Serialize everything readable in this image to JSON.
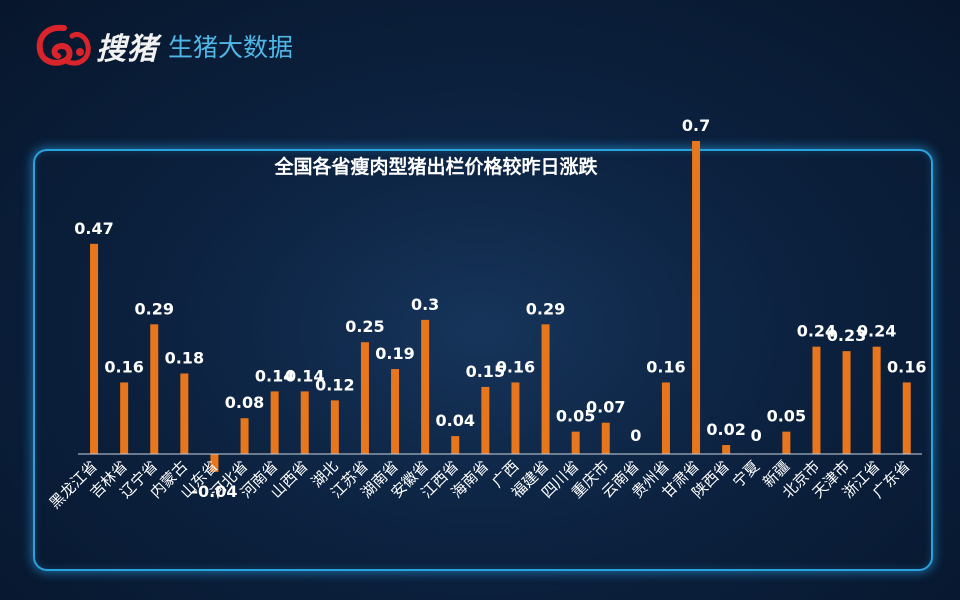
{
  "brand": {
    "name": "搜猪",
    "subtitle": "生猪大数据"
  },
  "colors": {
    "bar": "#e8761c",
    "axis": "#c9d3de",
    "label": "#ffffff",
    "frame": "#2aa3dc",
    "logo": "#d8242a"
  },
  "chart_data": {
    "type": "bar",
    "title": "全国各省瘦肉型猪出栏价格较昨日涨跌",
    "xlabel": "",
    "ylabel": "",
    "ylim": [
      -0.1,
      0.8
    ],
    "grid": false,
    "legend": "none",
    "categories": [
      "黑龙江省",
      "吉林省",
      "辽宁省",
      "内蒙古",
      "山东省",
      "河北省",
      "河南省",
      "山西省",
      "湖北",
      "江苏省",
      "湖南省",
      "安徽省",
      "江西省",
      "海南省",
      "广西",
      "福建省",
      "四川省",
      "重庆市",
      "云南省",
      "贵州省",
      "甘肃省",
      "陕西省",
      "宁夏",
      "新疆",
      "北京市",
      "天津市",
      "浙江省",
      "广东省"
    ],
    "values": [
      0.47,
      0.16,
      0.29,
      0.18,
      -0.04,
      0.08,
      0.14,
      0.14,
      0.12,
      0.25,
      0.19,
      0.3,
      0.04,
      0.15,
      0.16,
      0.29,
      0.05,
      0.07,
      0,
      0.16,
      0.7,
      0.02,
      0,
      0.05,
      0.24,
      0.23,
      0.24,
      0.16
    ],
    "data_labels": [
      "0.47",
      "0.16",
      "0.29",
      "0.18",
      "-0.04",
      "0.08",
      "0.14",
      "0.14",
      "0.12",
      "0.25",
      "0.19",
      "0.3",
      "0.04",
      "0.15",
      "0.16",
      "0.29",
      "0.05",
      "0.07",
      "0",
      "0.16",
      "0.7",
      "0.02",
      "0",
      "0.05",
      "0.24",
      "0.23",
      "0.24",
      "0.16"
    ]
  }
}
